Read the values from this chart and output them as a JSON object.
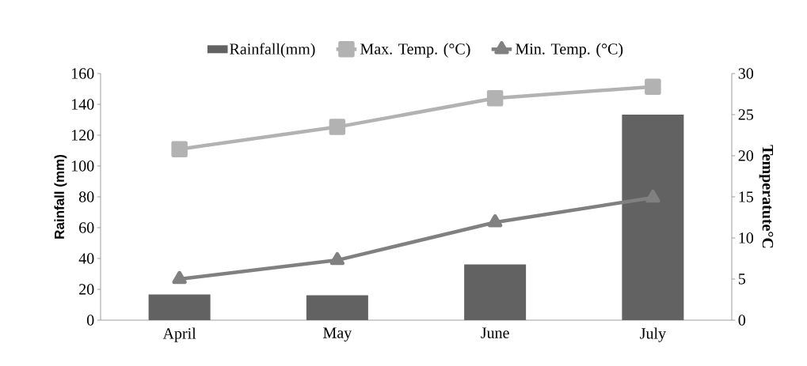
{
  "chart_data": {
    "type": "bar",
    "categories": [
      "April",
      "May",
      "June",
      "July"
    ],
    "ylabel": "Rainfall (mm)",
    "y2label": "Temperatute°C",
    "ylim": [
      0,
      160
    ],
    "yticks": [
      0,
      20,
      40,
      60,
      80,
      100,
      120,
      140,
      160
    ],
    "y2lim": [
      0,
      30
    ],
    "y2ticks": [
      0,
      5,
      10,
      15,
      20,
      25,
      30
    ],
    "legend": "top",
    "series": [
      {
        "name": "Rainfall(mm)",
        "color": "#626262",
        "values": [
          16.7,
          16.1,
          36.2,
          133.3
        ]
      },
      {
        "name": "Max. Temp. (°C)",
        "type": "line",
        "axis": "y2",
        "marker": "square",
        "color": "#b2b2b2",
        "values": [
          20.8,
          23.5,
          27.0,
          28.4
        ]
      },
      {
        "name": "Min. Temp. (°C)",
        "type": "line",
        "axis": "y2",
        "marker": "triangle",
        "color": "#808080",
        "values": [
          5.0,
          7.3,
          11.9,
          14.9
        ]
      }
    ]
  }
}
